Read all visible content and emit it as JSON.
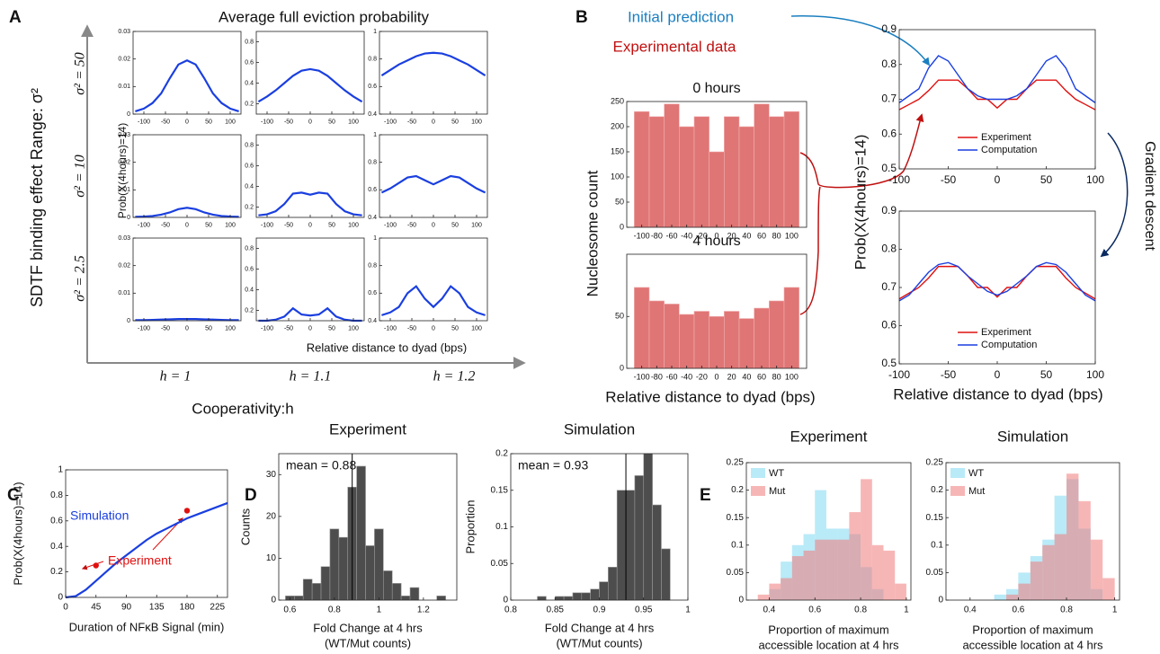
{
  "figure": {
    "panel_labels": [
      "A",
      "B",
      "C",
      "D",
      "E"
    ],
    "a_title": "Average full eviction probability",
    "a_ylabel": "Prob(X(4hours)=14)",
    "a_xlabel": "Relative distance to dyad (bps)",
    "a_row_labels": [
      "σ² = 50",
      "σ² = 10",
      "σ² = 2.5"
    ],
    "a_col_labels": [
      "h = 1",
      "h = 1.1",
      "h = 1.2"
    ],
    "a_vertical_axis": "SDTF binding effect Range: σ²",
    "a_horizontal_axis": "Cooperativity:h",
    "b_initial_prediction": "Initial prediction",
    "b_experimental_data": "Experimental data",
    "b_gradient_descent": "Gradient descent",
    "b_hist_ylabel": "Nucleosome count",
    "b_hist_xlabel": "Relative distance to dyad (bps)",
    "b_line_ylabel": "Prob(X(4hours)=14)",
    "b_line_xlabel": "Relative distance to dyad (bps)"
  },
  "chart_data": [
    {
      "type": "line",
      "x": [
        -120,
        -100,
        -80,
        -60,
        -40,
        -20,
        0,
        20,
        40,
        60,
        80,
        100,
        120
      ],
      "values": [
        0.001,
        0.002,
        0.004,
        0.0075,
        0.013,
        0.018,
        0.0195,
        0.018,
        0.013,
        0.0075,
        0.004,
        0.002,
        0.001
      ],
      "color": "#1a3fe0",
      "xlim": [
        -125,
        125
      ],
      "xticks": [
        -100,
        -50,
        0,
        50,
        100
      ],
      "ylim": [
        0,
        0.03
      ],
      "yticks": [
        0,
        0.01,
        0.02,
        0.03
      ]
    },
    {
      "type": "line",
      "x": [
        -120,
        -100,
        -80,
        -60,
        -40,
        -20,
        0,
        20,
        40,
        60,
        80,
        100,
        120
      ],
      "values": [
        0.22,
        0.27,
        0.33,
        0.4,
        0.47,
        0.52,
        0.535,
        0.52,
        0.47,
        0.4,
        0.33,
        0.27,
        0.22
      ],
      "color": "#1a3fe0",
      "xlim": [
        -125,
        125
      ],
      "xticks": [
        -100,
        -50,
        0,
        50,
        100
      ],
      "ylim": [
        0.1,
        0.9
      ],
      "yticks": [
        0.2,
        0.4,
        0.6,
        0.8
      ]
    },
    {
      "type": "line",
      "x": [
        -120,
        -100,
        -80,
        -60,
        -40,
        -20,
        0,
        20,
        40,
        60,
        80,
        100,
        120
      ],
      "values": [
        0.68,
        0.72,
        0.76,
        0.79,
        0.82,
        0.84,
        0.845,
        0.84,
        0.82,
        0.79,
        0.76,
        0.72,
        0.68
      ],
      "color": "#1a3fe0",
      "xlim": [
        -125,
        125
      ],
      "xticks": [
        -100,
        -50,
        0,
        50,
        100
      ],
      "ylim": [
        0.4,
        1
      ],
      "yticks": [
        0.4,
        0.6,
        0.8,
        1
      ]
    },
    {
      "type": "line",
      "x": [
        -120,
        -100,
        -80,
        -60,
        -40,
        -20,
        0,
        20,
        40,
        60,
        80,
        100,
        120
      ],
      "values": [
        0.0002,
        0.0003,
        0.0005,
        0.001,
        0.0018,
        0.003,
        0.0035,
        0.003,
        0.0018,
        0.001,
        0.0005,
        0.0003,
        0.0002
      ],
      "color": "#1a3fe0",
      "xlim": [
        -125,
        125
      ],
      "xticks": [
        -100,
        -50,
        0,
        50,
        100
      ],
      "ylim": [
        0,
        0.03
      ],
      "yticks": [
        0,
        0.01,
        0.02,
        0.03
      ]
    },
    {
      "type": "line",
      "x": [
        -120,
        -100,
        -80,
        -60,
        -40,
        -20,
        0,
        20,
        40,
        60,
        80,
        100,
        120
      ],
      "values": [
        0.12,
        0.13,
        0.16,
        0.23,
        0.33,
        0.34,
        0.32,
        0.34,
        0.33,
        0.23,
        0.16,
        0.13,
        0.12
      ],
      "color": "#1a3fe0",
      "xlim": [
        -125,
        125
      ],
      "xticks": [
        -100,
        -50,
        0,
        50,
        100
      ],
      "ylim": [
        0.1,
        0.9
      ],
      "yticks": [
        0.2,
        0.4,
        0.6,
        0.8
      ]
    },
    {
      "type": "line",
      "x": [
        -120,
        -100,
        -80,
        -60,
        -40,
        -20,
        0,
        20,
        40,
        60,
        80,
        100,
        120
      ],
      "values": [
        0.58,
        0.61,
        0.65,
        0.69,
        0.7,
        0.67,
        0.64,
        0.67,
        0.7,
        0.69,
        0.65,
        0.61,
        0.58
      ],
      "color": "#1a3fe0",
      "xlim": [
        -125,
        125
      ],
      "xticks": [
        -100,
        -50,
        0,
        50,
        100
      ],
      "ylim": [
        0.4,
        1
      ],
      "yticks": [
        0.4,
        0.6,
        0.8,
        1
      ]
    },
    {
      "type": "line",
      "x": [
        -120,
        -100,
        -80,
        -60,
        -40,
        -20,
        0,
        20,
        40,
        60,
        80,
        100,
        120
      ],
      "values": [
        0.0002,
        0.0002,
        0.0003,
        0.0004,
        0.0005,
        0.0006,
        0.0006,
        0.0006,
        0.0005,
        0.0004,
        0.0003,
        0.0002,
        0.0002
      ],
      "color": "#1a3fe0",
      "xlim": [
        -125,
        125
      ],
      "xticks": [
        -100,
        -50,
        0,
        50,
        100
      ],
      "ylim": [
        0,
        0.03
      ],
      "yticks": [
        0,
        0.01,
        0.02,
        0.03
      ]
    },
    {
      "type": "line",
      "x": [
        -120,
        -100,
        -80,
        -60,
        -40,
        -20,
        0,
        20,
        40,
        60,
        80,
        100,
        120
      ],
      "values": [
        0.1,
        0.1,
        0.11,
        0.14,
        0.22,
        0.16,
        0.15,
        0.16,
        0.22,
        0.14,
        0.11,
        0.1,
        0.1
      ],
      "color": "#1a3fe0",
      "xlim": [
        -125,
        125
      ],
      "xticks": [
        -100,
        -50,
        0,
        50,
        100
      ],
      "ylim": [
        0.1,
        0.9
      ],
      "yticks": [
        0.2,
        0.4,
        0.6,
        0.8
      ]
    },
    {
      "type": "line",
      "x": [
        -120,
        -100,
        -80,
        -60,
        -40,
        -20,
        0,
        20,
        40,
        60,
        80,
        100,
        120
      ],
      "values": [
        0.44,
        0.46,
        0.5,
        0.6,
        0.65,
        0.56,
        0.5,
        0.56,
        0.65,
        0.6,
        0.5,
        0.46,
        0.44
      ],
      "color": "#1a3fe0",
      "xlim": [
        -125,
        125
      ],
      "xticks": [
        -100,
        -50,
        0,
        50,
        100
      ],
      "ylim": [
        0.4,
        1
      ],
      "yticks": [
        0.4,
        0.6,
        0.8,
        1
      ]
    },
    {
      "type": "histogram",
      "title": "0 hours",
      "bins": [
        -110,
        -90,
        -70,
        -50,
        -30,
        -10,
        10,
        30,
        50,
        70,
        90,
        110
      ],
      "values": [
        230,
        220,
        245,
        200,
        220,
        150,
        220,
        200,
        245,
        220,
        230
      ],
      "color": "#e07575",
      "xlim": [
        -120,
        120
      ],
      "xticks": [
        -100,
        -80,
        -60,
        -40,
        -20,
        0,
        20,
        40,
        60,
        80,
        100
      ],
      "ylim": [
        0,
        250
      ],
      "yticks": [
        0,
        50,
        100,
        150,
        200,
        250
      ]
    },
    {
      "type": "histogram",
      "title": "4 hours",
      "bins": [
        -110,
        -90,
        -70,
        -50,
        -30,
        -10,
        10,
        30,
        50,
        70,
        90,
        110
      ],
      "values": [
        78,
        65,
        62,
        52,
        55,
        50,
        55,
        48,
        58,
        65,
        78
      ],
      "color": "#e07575",
      "xlim": [
        -120,
        120
      ],
      "xticks": [
        -100,
        -80,
        -60,
        -40,
        -20,
        0,
        20,
        40,
        60,
        80,
        100
      ],
      "ylim": [
        0,
        110
      ],
      "yticks": [
        0,
        50
      ]
    },
    {
      "type": "line",
      "x": [
        -100,
        -90,
        -80,
        -70,
        -60,
        -50,
        -40,
        -30,
        -20,
        -10,
        0,
        10,
        20,
        30,
        40,
        50,
        60,
        70,
        80,
        90,
        100
      ],
      "series": [
        {
          "name": "Experiment",
          "color": "#e01010",
          "values": [
            0.67,
            0.685,
            0.7,
            0.725,
            0.755,
            0.755,
            0.755,
            0.73,
            0.7,
            0.7,
            0.675,
            0.7,
            0.7,
            0.73,
            0.755,
            0.755,
            0.755,
            0.725,
            0.7,
            0.685,
            0.67
          ]
        },
        {
          "name": "Computation",
          "color": "#1a3fe0",
          "values": [
            0.69,
            0.71,
            0.73,
            0.79,
            0.825,
            0.81,
            0.77,
            0.73,
            0.71,
            0.7,
            0.7,
            0.7,
            0.71,
            0.73,
            0.77,
            0.81,
            0.825,
            0.79,
            0.73,
            0.71,
            0.69
          ]
        }
      ],
      "legend": "lower right",
      "xlim": [
        -100,
        100
      ],
      "xticks": [
        -100,
        -50,
        0,
        50,
        100
      ],
      "ylim": [
        0.5,
        0.9
      ],
      "yticks": [
        0.5,
        0.6,
        0.7,
        0.8,
        0.9
      ]
    },
    {
      "type": "line",
      "x": [
        -100,
        -90,
        -80,
        -70,
        -60,
        -50,
        -40,
        -30,
        -20,
        -10,
        0,
        10,
        20,
        30,
        40,
        50,
        60,
        70,
        80,
        90,
        100
      ],
      "series": [
        {
          "name": "Experiment",
          "color": "#e01010",
          "values": [
            0.67,
            0.685,
            0.7,
            0.725,
            0.755,
            0.755,
            0.755,
            0.73,
            0.7,
            0.7,
            0.675,
            0.7,
            0.7,
            0.73,
            0.755,
            0.755,
            0.755,
            0.725,
            0.7,
            0.685,
            0.67
          ]
        },
        {
          "name": "Computation",
          "color": "#1a3fe0",
          "values": [
            0.665,
            0.68,
            0.71,
            0.74,
            0.76,
            0.765,
            0.755,
            0.73,
            0.71,
            0.69,
            0.68,
            0.69,
            0.71,
            0.73,
            0.755,
            0.765,
            0.76,
            0.74,
            0.71,
            0.68,
            0.665
          ]
        }
      ],
      "legend": "lower right",
      "xlim": [
        -100,
        100
      ],
      "xticks": [
        -100,
        -50,
        0,
        50,
        100
      ],
      "ylim": [
        0.5,
        0.9
      ],
      "yticks": [
        0.5,
        0.6,
        0.7,
        0.8,
        0.9
      ]
    },
    {
      "type": "line",
      "ylabel": "Prob(X(4hours)=14)",
      "xlabel": [
        "Duration of NFκB Signal (min)"
      ],
      "x": [
        0,
        15,
        30,
        45,
        60,
        75,
        90,
        105,
        120,
        135,
        150,
        165,
        180,
        195,
        210,
        225,
        240
      ],
      "series": [
        {
          "name": "Simulation",
          "color": "#1a3fe0",
          "values": [
            0,
            0.01,
            0.06,
            0.13,
            0.2,
            0.27,
            0.33,
            0.39,
            0.45,
            0.5,
            0.54,
            0.58,
            0.62,
            0.65,
            0.68,
            0.71,
            0.74
          ]
        }
      ],
      "points": {
        "name": "Experiment",
        "color": "#e01010",
        "x": [
          45,
          180
        ],
        "values": [
          0.25,
          0.68
        ]
      },
      "xlim": [
        0,
        240
      ],
      "xticks": [
        0,
        45,
        90,
        135,
        180,
        225
      ],
      "ylim": [
        0,
        1
      ],
      "yticks": [
        0,
        0.2,
        0.4,
        0.6,
        0.8,
        1
      ]
    },
    {
      "type": "histogram",
      "title": "Experiment",
      "ylabel": "Counts",
      "xlabel": [
        "Fold Change at 4 hrs",
        "(WT/Mut counts)"
      ],
      "bins": [
        0.58,
        0.62,
        0.66,
        0.7,
        0.74,
        0.78,
        0.82,
        0.86,
        0.9,
        0.94,
        0.98,
        1.02,
        1.06,
        1.1,
        1.14,
        1.18,
        1.22,
        1.26,
        1.3
      ],
      "values": [
        1,
        1,
        5,
        4,
        8,
        17,
        15,
        27,
        32,
        13,
        17,
        7,
        4,
        1,
        3,
        0,
        0,
        1
      ],
      "color": "#4d4d4d",
      "mean": 0.88,
      "mean_label": "mean = 0.88",
      "xlim": [
        0.55,
        1.35
      ],
      "xticks": [
        0.6,
        0.8,
        1,
        1.2
      ],
      "ylim": [
        0,
        35
      ],
      "yticks": [
        0,
        10,
        20,
        30
      ]
    },
    {
      "type": "histogram",
      "title": "Simulation",
      "ylabel": "Proportion",
      "xlabel": [
        "Fold Change at 4 hrs",
        "(WT/Mut counts)"
      ],
      "bins": [
        0.83,
        0.84,
        0.85,
        0.86,
        0.87,
        0.88,
        0.89,
        0.9,
        0.91,
        0.92,
        0.93,
        0.94,
        0.95,
        0.96,
        0.97,
        0.98
      ],
      "values": [
        0.005,
        0,
        0.005,
        0.005,
        0.01,
        0.01,
        0.015,
        0.025,
        0.045,
        0.15,
        0.15,
        0.17,
        0.2,
        0.13,
        0.07
      ],
      "color": "#4d4d4d",
      "mean": 0.93,
      "mean_label": "mean = 0.93",
      "xlim": [
        0.8,
        1
      ],
      "xticks": [
        0.8,
        0.85,
        0.9,
        0.95,
        1
      ],
      "ylim": [
        0,
        0.2
      ],
      "yticks": [
        0,
        0.05,
        0.1,
        0.15,
        0.2
      ]
    },
    {
      "type": "histogram",
      "title": "Experiment",
      "xlabel": [
        "Proportion of maximum",
        "accessible location at 4 hrs"
      ],
      "bins": [
        0.35,
        0.4,
        0.45,
        0.5,
        0.55,
        0.6,
        0.65,
        0.7,
        0.75,
        0.8,
        0.85,
        0.9,
        0.95,
        1
      ],
      "series": [
        {
          "name": "WT",
          "color": "#7fd8f2",
          "values": [
            0,
            0.02,
            0.07,
            0.1,
            0.12,
            0.2,
            0.13,
            0.13,
            0.12,
            0.06,
            0.02,
            0,
            0
          ]
        },
        {
          "name": "Mut",
          "color": "#f07a7a",
          "values": [
            0.01,
            0.03,
            0.04,
            0.08,
            0.09,
            0.11,
            0.11,
            0.11,
            0.16,
            0.22,
            0.1,
            0.09,
            0.03
          ]
        }
      ],
      "legend": "upper left",
      "xlim": [
        0.3,
        1.02
      ],
      "xticks": [
        0.4,
        0.6,
        0.8,
        1
      ],
      "ylim": [
        0,
        0.25
      ],
      "yticks": [
        0,
        0.05,
        0.1,
        0.15,
        0.2,
        0.25
      ]
    },
    {
      "type": "histogram",
      "title": "Simulation",
      "xlabel": [
        "Proportion of maximum",
        "accessible location at 4 hrs"
      ],
      "bins": [
        0.5,
        0.55,
        0.6,
        0.65,
        0.7,
        0.75,
        0.8,
        0.85,
        0.9,
        0.95,
        1
      ],
      "series": [
        {
          "name": "WT",
          "color": "#7fd8f2",
          "values": [
            0.01,
            0.02,
            0.05,
            0.08,
            0.11,
            0.19,
            0.22,
            0.13,
            0.02,
            0
          ]
        },
        {
          "name": "Mut",
          "color": "#f07a7a",
          "values": [
            0,
            0.01,
            0.03,
            0.07,
            0.1,
            0.12,
            0.23,
            0.18,
            0.11,
            0.04
          ]
        }
      ],
      "legend": "upper left",
      "xlim": [
        0.3,
        1.02
      ],
      "xticks": [
        0.4,
        0.6,
        0.8,
        1
      ],
      "ylim": [
        0,
        0.25
      ],
      "yticks": [
        0,
        0.05,
        0.1,
        0.15,
        0.2,
        0.25
      ]
    }
  ]
}
